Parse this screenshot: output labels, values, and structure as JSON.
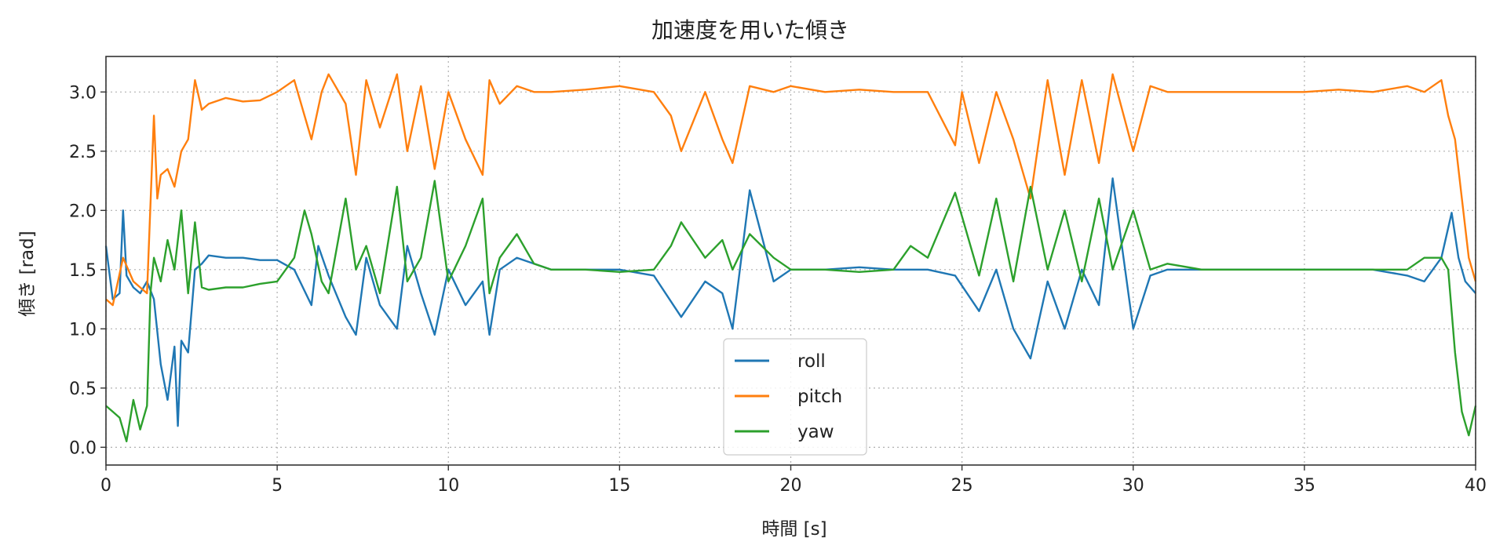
{
  "chart_data": {
    "type": "line",
    "title": "加速度を用いた傾き",
    "xlabel": "時間 [s]",
    "ylabel": "傾き [rad]",
    "xlim": [
      0,
      40
    ],
    "ylim": [
      -0.15,
      3.3
    ],
    "xticks": [
      0,
      5,
      10,
      15,
      20,
      25,
      30,
      35,
      40
    ],
    "yticks": [
      0.0,
      0.5,
      1.0,
      1.5,
      2.0,
      2.5,
      3.0
    ],
    "xtick_labels": [
      "0",
      "5",
      "10",
      "15",
      "20",
      "25",
      "30",
      "35",
      "40"
    ],
    "ytick_labels": [
      "0.0",
      "0.5",
      "1.0",
      "1.5",
      "2.0",
      "2.5",
      "3.0"
    ],
    "grid": true,
    "legend": "lower-center",
    "series": [
      {
        "name": "roll",
        "color": "#1f77b4",
        "x": [
          0,
          0.2,
          0.4,
          0.5,
          0.6,
          0.8,
          1.0,
          1.2,
          1.4,
          1.6,
          1.8,
          2.0,
          2.1,
          2.2,
          2.4,
          2.6,
          2.8,
          3.0,
          3.5,
          4.0,
          4.5,
          5.0,
          5.5,
          6.0,
          6.2,
          6.5,
          7.0,
          7.3,
          7.6,
          8.0,
          8.5,
          8.8,
          9.2,
          9.6,
          10.0,
          10.5,
          11.0,
          11.2,
          11.5,
          12.0,
          12.5,
          13.0,
          14.0,
          15.0,
          16.0,
          16.8,
          17.5,
          18.0,
          18.3,
          18.8,
          19.5,
          20.0,
          21.0,
          22.0,
          23.0,
          24.0,
          24.8,
          25.5,
          26.0,
          26.5,
          27.0,
          27.5,
          28.0,
          28.5,
          29.0,
          29.4,
          30.0,
          30.5,
          31.0,
          32.0,
          33.0,
          34.0,
          35.0,
          36.0,
          37.0,
          38.0,
          38.5,
          39.0,
          39.3,
          39.5,
          39.7,
          40.0
        ],
        "values": [
          1.7,
          1.25,
          1.3,
          2.0,
          1.45,
          1.35,
          1.3,
          1.4,
          1.25,
          0.7,
          0.4,
          0.85,
          0.18,
          0.9,
          0.8,
          1.5,
          1.55,
          1.62,
          1.6,
          1.6,
          1.58,
          1.58,
          1.5,
          1.2,
          1.7,
          1.45,
          1.1,
          0.95,
          1.6,
          1.2,
          1.0,
          1.7,
          1.3,
          0.95,
          1.5,
          1.2,
          1.4,
          0.95,
          1.5,
          1.6,
          1.55,
          1.5,
          1.5,
          1.5,
          1.45,
          1.1,
          1.4,
          1.3,
          1.0,
          2.17,
          1.4,
          1.5,
          1.5,
          1.52,
          1.5,
          1.5,
          1.45,
          1.15,
          1.5,
          1.0,
          0.75,
          1.4,
          1.0,
          1.5,
          1.2,
          2.27,
          1.0,
          1.45,
          1.5,
          1.5,
          1.5,
          1.5,
          1.5,
          1.5,
          1.5,
          1.45,
          1.4,
          1.6,
          1.98,
          1.6,
          1.4,
          1.3
        ]
      },
      {
        "name": "pitch",
        "color": "#ff7f0e",
        "x": [
          0,
          0.2,
          0.5,
          0.8,
          1.0,
          1.2,
          1.4,
          1.5,
          1.6,
          1.8,
          2.0,
          2.2,
          2.4,
          2.6,
          2.8,
          3.0,
          3.5,
          4.0,
          4.5,
          5.0,
          5.5,
          5.8,
          6.0,
          6.3,
          6.5,
          7.0,
          7.3,
          7.6,
          8.0,
          8.5,
          8.8,
          9.2,
          9.6,
          10.0,
          10.5,
          11.0,
          11.2,
          11.5,
          12.0,
          12.5,
          13.0,
          14.0,
          15.0,
          16.0,
          16.5,
          16.8,
          17.5,
          18.0,
          18.3,
          18.8,
          19.5,
          20.0,
          21.0,
          22.0,
          23.0,
          24.0,
          24.8,
          25.0,
          25.5,
          26.0,
          26.5,
          27.0,
          27.5,
          28.0,
          28.5,
          29.0,
          29.4,
          30.0,
          30.5,
          31.0,
          32.0,
          33.0,
          34.0,
          35.0,
          36.0,
          37.0,
          38.0,
          38.5,
          39.0,
          39.2,
          39.4,
          39.6,
          39.8,
          40.0
        ],
        "values": [
          1.25,
          1.2,
          1.6,
          1.4,
          1.35,
          1.3,
          2.8,
          2.1,
          2.3,
          2.35,
          2.2,
          2.5,
          2.6,
          3.1,
          2.85,
          2.9,
          2.95,
          2.92,
          2.93,
          3.0,
          3.1,
          2.8,
          2.6,
          3.0,
          3.15,
          2.9,
          2.3,
          3.1,
          2.7,
          3.15,
          2.5,
          3.05,
          2.35,
          3.0,
          2.6,
          2.3,
          3.1,
          2.9,
          3.05,
          3.0,
          3.0,
          3.02,
          3.05,
          3.0,
          2.8,
          2.5,
          3.0,
          2.6,
          2.4,
          3.05,
          3.0,
          3.05,
          3.0,
          3.02,
          3.0,
          3.0,
          2.55,
          3.0,
          2.4,
          3.0,
          2.6,
          2.1,
          3.1,
          2.3,
          3.1,
          2.4,
          3.15,
          2.5,
          3.05,
          3.0,
          3.0,
          3.0,
          3.0,
          3.0,
          3.02,
          3.0,
          3.05,
          3.0,
          3.1,
          2.8,
          2.6,
          2.1,
          1.6,
          1.4
        ]
      },
      {
        "name": "yaw",
        "color": "#2ca02c",
        "x": [
          0,
          0.2,
          0.4,
          0.6,
          0.8,
          1.0,
          1.2,
          1.3,
          1.4,
          1.6,
          1.8,
          2.0,
          2.2,
          2.4,
          2.6,
          2.8,
          3.0,
          3.5,
          4.0,
          4.5,
          5.0,
          5.5,
          5.8,
          6.0,
          6.3,
          6.5,
          7.0,
          7.3,
          7.6,
          8.0,
          8.5,
          8.8,
          9.2,
          9.6,
          10.0,
          10.5,
          11.0,
          11.2,
          11.5,
          12.0,
          12.5,
          13.0,
          14.0,
          15.0,
          16.0,
          16.5,
          16.8,
          17.5,
          18.0,
          18.3,
          18.8,
          19.5,
          20.0,
          21.0,
          22.0,
          23.0,
          23.5,
          24.0,
          24.8,
          25.5,
          26.0,
          26.5,
          27.0,
          27.5,
          28.0,
          28.5,
          29.0,
          29.4,
          30.0,
          30.5,
          31.0,
          32.0,
          33.0,
          34.0,
          35.0,
          36.0,
          37.0,
          38.0,
          38.5,
          39.0,
          39.2,
          39.4,
          39.6,
          39.8,
          40.0
        ],
        "values": [
          0.35,
          0.3,
          0.25,
          0.05,
          0.4,
          0.15,
          0.35,
          1.3,
          1.6,
          1.4,
          1.75,
          1.5,
          2.0,
          1.3,
          1.9,
          1.35,
          1.33,
          1.35,
          1.35,
          1.38,
          1.4,
          1.6,
          2.0,
          1.8,
          1.4,
          1.3,
          2.1,
          1.5,
          1.7,
          1.3,
          2.2,
          1.4,
          1.6,
          2.25,
          1.4,
          1.7,
          2.1,
          1.3,
          1.6,
          1.8,
          1.55,
          1.5,
          1.5,
          1.48,
          1.5,
          1.7,
          1.9,
          1.6,
          1.75,
          1.5,
          1.8,
          1.6,
          1.5,
          1.5,
          1.48,
          1.5,
          1.7,
          1.6,
          2.15,
          1.45,
          2.1,
          1.4,
          2.2,
          1.5,
          2.0,
          1.4,
          2.1,
          1.5,
          2.0,
          1.5,
          1.55,
          1.5,
          1.5,
          1.5,
          1.5,
          1.5,
          1.5,
          1.5,
          1.6,
          1.6,
          1.5,
          0.8,
          0.3,
          0.1,
          0.35
        ]
      }
    ]
  }
}
